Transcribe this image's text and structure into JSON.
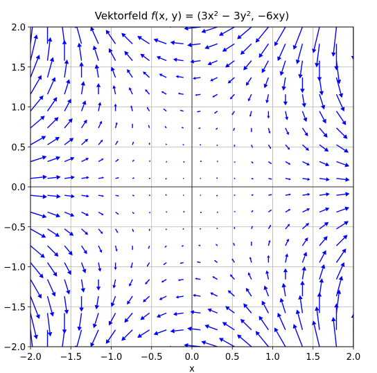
{
  "chart_data": {
    "type": "quiver",
    "title": "Vektorfeld f(x, y) = (3x² − 3y², −6xy)",
    "title_parts": {
      "prefix": "Vektorfeld ",
      "f": "f",
      "args": "(x, y) = (3x",
      "sup1": "2",
      "mid": " − 3y",
      "sup2": "2",
      "suffix": ", −6xy)"
    },
    "xlabel": "x",
    "ylabel": "",
    "xlim": [
      -2.0,
      2.0
    ],
    "ylim": [
      -2.0,
      2.0
    ],
    "xticks": [
      -2.0,
      -1.5,
      -1.0,
      -0.5,
      0.0,
      0.5,
      1.0,
      1.5,
      2.0
    ],
    "yticks": [
      -2.0,
      -1.5,
      -1.0,
      -0.5,
      0.0,
      0.5,
      1.0,
      1.5,
      2.0
    ],
    "xtick_labels": [
      "−2.0",
      "−1.5",
      "−1.0",
      "−0.5",
      "0.0",
      "0.5",
      "1.0",
      "1.5",
      "2.0"
    ],
    "ytick_labels": [
      "−2.0",
      "−1.5",
      "−1.0",
      "−0.5",
      "0.0",
      "0.5",
      "1.0",
      "1.5",
      "2.0"
    ],
    "grid": true,
    "field": {
      "u": "3x^2 - 3y^2",
      "v": "-6xy"
    },
    "grid_points": {
      "x_start": -2.0,
      "x_end": 2.0,
      "y_start": -2.0,
      "y_end": 2.0,
      "n": 20
    },
    "arrow_color": "#0000ff"
  }
}
